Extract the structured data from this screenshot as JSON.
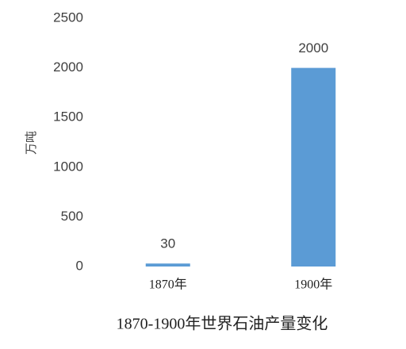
{
  "chart_data": {
    "type": "bar",
    "title": "1870-1900年世界石油产量变化",
    "y_label": "万吨",
    "categories": [
      "1870年",
      "1900年"
    ],
    "values": [
      30,
      2000
    ],
    "color": "#5b9bd5",
    "ylim": [
      0,
      2500
    ],
    "yticks": [
      0,
      500,
      1000,
      1500,
      2000,
      2500
    ],
    "grid": false
  }
}
